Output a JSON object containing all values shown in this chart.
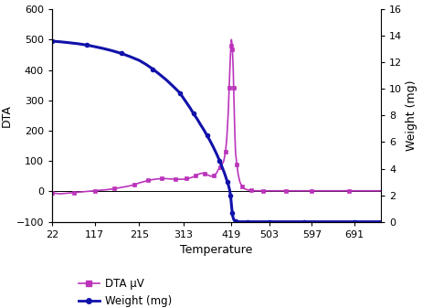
{
  "title": "",
  "xlabel": "Temperature",
  "ylabel_left": "DTA",
  "ylabel_right": "Weight (mg)",
  "ylim_left": [
    -100,
    600
  ],
  "ylim_right": [
    0,
    16
  ],
  "xlim": [
    22,
    750
  ],
  "xticks": [
    22,
    117,
    215,
    313,
    419,
    503,
    597,
    691
  ],
  "yticks_left": [
    -100,
    0,
    100,
    200,
    300,
    400,
    500,
    600
  ],
  "yticks_right": [
    0,
    2,
    4,
    6,
    8,
    10,
    12,
    14,
    16
  ],
  "dta_color": "#bb33bb",
  "weight_color": "#1111aa",
  "bg_color": "#ffffff",
  "legend_dta": "DTA μV",
  "legend_weight": "Weight (mg)",
  "dta_x": [
    22,
    40,
    55,
    70,
    85,
    100,
    117,
    130,
    145,
    160,
    175,
    190,
    205,
    215,
    225,
    235,
    245,
    255,
    265,
    275,
    285,
    295,
    305,
    313,
    320,
    327,
    333,
    340,
    347,
    353,
    360,
    367,
    373,
    380,
    386,
    390,
    394,
    398,
    402,
    406,
    409,
    412,
    414,
    416,
    417,
    418,
    419,
    420,
    421,
    422,
    423,
    424,
    426,
    428,
    431,
    434,
    438,
    443,
    449,
    455,
    462,
    470,
    480,
    490,
    503,
    520,
    540,
    560,
    580,
    597,
    620,
    650,
    680,
    720,
    750
  ],
  "dta_y": [
    -5,
    -8,
    -6,
    -4,
    -2,
    0,
    2,
    4,
    6,
    9,
    13,
    17,
    22,
    28,
    32,
    36,
    39,
    41,
    42,
    42,
    41,
    40,
    40,
    40,
    42,
    44,
    47,
    52,
    57,
    60,
    58,
    54,
    50,
    52,
    60,
    72,
    80,
    88,
    100,
    130,
    180,
    260,
    340,
    420,
    455,
    480,
    500,
    490,
    468,
    440,
    400,
    340,
    220,
    130,
    90,
    55,
    30,
    15,
    8,
    5,
    3,
    2,
    2,
    2,
    2,
    2,
    2,
    2,
    2,
    2,
    2,
    2,
    2,
    2,
    2
  ],
  "weight_x": [
    22,
    40,
    60,
    80,
    100,
    117,
    135,
    155,
    175,
    195,
    215,
    230,
    245,
    260,
    275,
    290,
    305,
    313,
    320,
    328,
    335,
    343,
    350,
    358,
    365,
    372,
    380,
    387,
    393,
    398,
    403,
    407,
    410,
    413,
    415,
    416,
    417,
    418,
    419,
    420,
    421,
    422,
    424,
    426,
    429,
    433,
    438,
    445,
    455,
    465,
    478,
    490,
    503,
    520,
    540,
    560,
    580,
    597,
    620,
    650,
    691,
    720,
    750
  ],
  "weight_y": [
    13.6,
    13.55,
    13.48,
    13.4,
    13.3,
    13.18,
    13.05,
    12.88,
    12.68,
    12.43,
    12.15,
    11.85,
    11.5,
    11.1,
    10.68,
    10.2,
    9.7,
    9.3,
    8.95,
    8.55,
    8.15,
    7.75,
    7.35,
    6.92,
    6.5,
    6.08,
    5.55,
    5.05,
    4.58,
    4.15,
    3.72,
    3.32,
    3.0,
    2.68,
    2.4,
    2.2,
    1.95,
    1.65,
    1.3,
    0.95,
    0.65,
    0.4,
    0.18,
    0.08,
    0.03,
    0.01,
    0.0,
    0.0,
    0.0,
    0.0,
    0.0,
    0.0,
    0.0,
    0.0,
    0.0,
    0.0,
    0.0,
    0.0,
    0.0,
    0.0,
    0.0,
    0.0,
    0.0
  ]
}
